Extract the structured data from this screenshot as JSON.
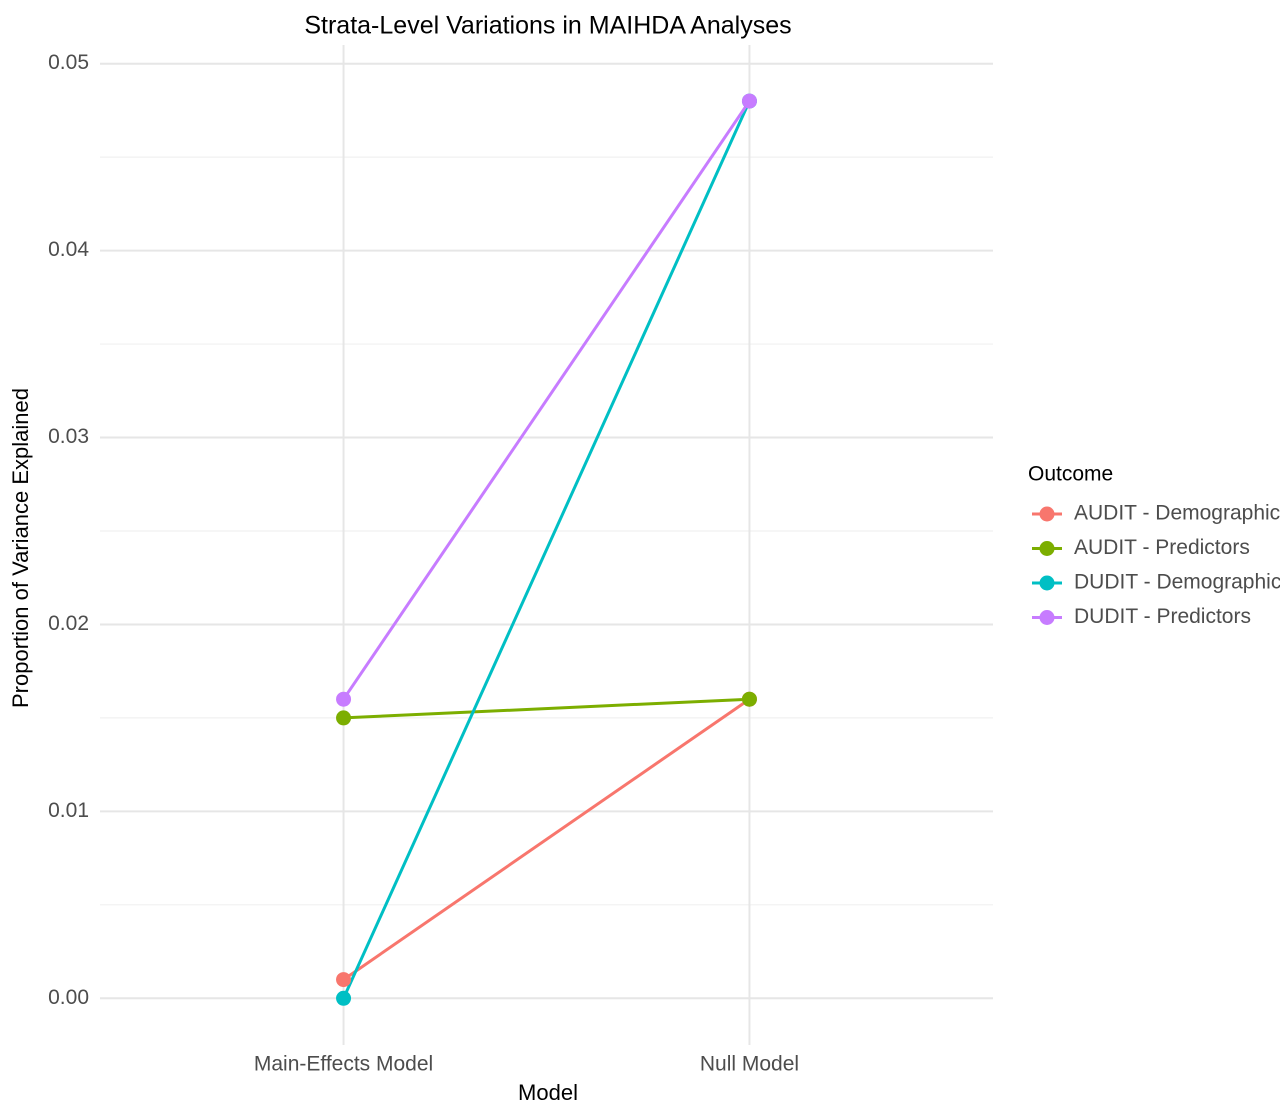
{
  "chart_data": {
    "type": "line",
    "title": "Strata-Level Variations in MAIHDA Analyses",
    "x_label": "Model",
    "y_label": "Proportion of Variance Explained",
    "categories": [
      "Main-Effects Model",
      "Null Model"
    ],
    "series": [
      {
        "name": "AUDIT - Demographics",
        "color": "#F8766D",
        "values": [
          0.001,
          0.016
        ]
      },
      {
        "name": "AUDIT - Predictors",
        "color": "#7CAE00",
        "values": [
          0.015,
          0.016
        ]
      },
      {
        "name": "DUDIT - Demographics",
        "color": "#00BFC4",
        "values": [
          0.0,
          0.048
        ]
      },
      {
        "name": "DUDIT - Predictors",
        "color": "#C77CFF",
        "values": [
          0.016,
          0.048
        ]
      }
    ],
    "legend_title": "Outcome",
    "legend_position": "right",
    "ylim": [
      -0.0025,
      0.051
    ],
    "yticks": [
      {
        "value": 0,
        "label": "0.00"
      },
      {
        "value": 0.01,
        "label": "0.01"
      },
      {
        "value": 0.02,
        "label": "0.02"
      },
      {
        "value": 0.03,
        "label": "0.03"
      },
      {
        "value": 0.04,
        "label": "0.04"
      },
      {
        "value": 0.05,
        "label": "0.05"
      }
    ],
    "yminor": [
      0.005,
      0.015,
      0.025,
      0.035,
      0.045
    ],
    "grid": true
  }
}
